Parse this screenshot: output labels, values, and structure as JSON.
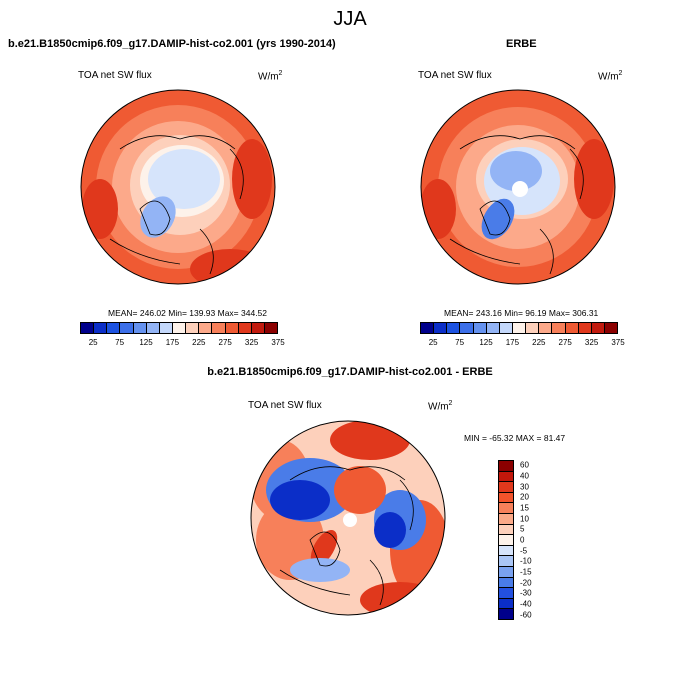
{
  "season": "JJA",
  "panels": {
    "model": {
      "title": "b.e21.B1850cmip6.f09_g17.DAMIP-hist-co2.001 (yrs 1990-2014)",
      "variable": "TOA net SW flux",
      "units": "W/m",
      "units_sup": "2",
      "stats": "MEAN= 246.02  Min= 139.93  Max= 344.52",
      "mean": 246.02,
      "min": 139.93,
      "max": 344.52
    },
    "obs": {
      "title": "ERBE",
      "variable": "TOA net SW flux",
      "units": "W/m",
      "units_sup": "2",
      "stats": "MEAN= 243.16  Min=  96.19  Max= 306.31",
      "mean": 243.16,
      "min": 96.19,
      "max": 306.31
    },
    "diff": {
      "title": "b.e21.B1850cmip6.f09_g17.DAMIP-hist-co2.001 - ERBE",
      "variable": "TOA net SW flux",
      "units": "W/m",
      "units_sup": "2",
      "stats": "MIN = -65.32 MAX =  81.47",
      "min": -65.32,
      "max": 81.47
    }
  },
  "abs_colorbar": {
    "colors": [
      "#00008b",
      "#0b2ec8",
      "#1c52e0",
      "#3c6fe8",
      "#6592ef",
      "#93b4f5",
      "#c4d8fb",
      "#fdf2ea",
      "#fdd0bb",
      "#fca98a",
      "#f7805a",
      "#ef5a33",
      "#e0381c",
      "#c11a0e",
      "#8b0000"
    ],
    "tick_labels": [
      "25",
      "75",
      "125",
      "175",
      "225",
      "275",
      "325",
      "375"
    ]
  },
  "diff_colorbar": {
    "colors": [
      "#8b0000",
      "#c2170b",
      "#e0381c",
      "#f2532b",
      "#f7805a",
      "#fba988",
      "#fdd0bb",
      "#fdf2ea",
      "#d6e4fb",
      "#aac6f6",
      "#7aa2f0",
      "#4a7ce8",
      "#2350e0",
      "#0b2ec8",
      "#00008b"
    ],
    "tick_labels": [
      "60",
      "40",
      "30",
      "20",
      "15",
      "10",
      "5",
      "0",
      "-5",
      "-10",
      "-15",
      "-20",
      "-30",
      "-40",
      "-60"
    ]
  },
  "map_colors": {
    "deep_red": "#e0381c",
    "red": "#ef5a33",
    "salmon": "#f7805a",
    "light_salmon": "#fca98a",
    "peach": "#fdd0bb",
    "pale": "#fdf2ea",
    "light_blue": "#d6e4fb",
    "mid_blue": "#93b4f5",
    "blue": "#4a7ce8",
    "dark_blue": "#0b2ec8"
  }
}
